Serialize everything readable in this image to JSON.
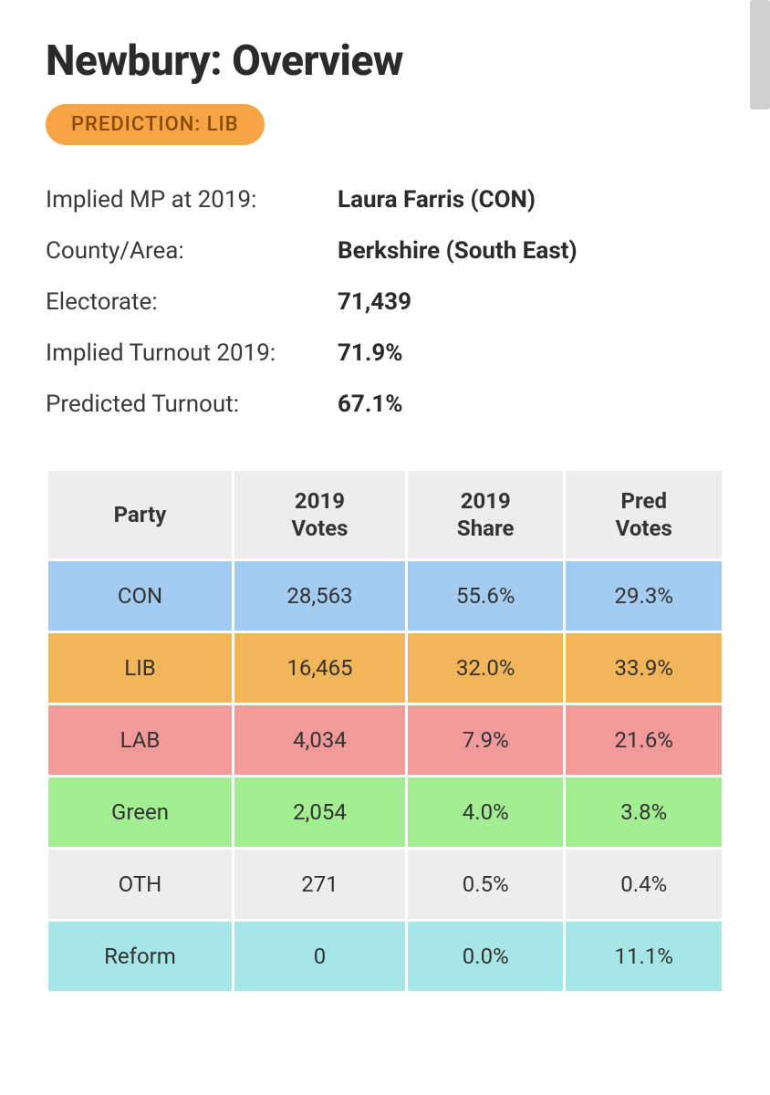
{
  "title": "Newbury: Overview",
  "prediction_badge": "PREDICTION: LIB",
  "info": {
    "mp_label": "Implied MP at 2019:",
    "mp_value": "Laura Farris  (CON)",
    "county_label": "County/Area:",
    "county_value": "Berkshire (South East)",
    "electorate_label": "Electorate:",
    "electorate_value": "71,439",
    "turnout2019_label": "Implied Turnout 2019:",
    "turnout2019_value": "71.9%",
    "predturnout_label": "Predicted Turnout:",
    "predturnout_value": "67.1%"
  },
  "table": {
    "headers": [
      "Party",
      "2019\nVotes",
      "2019\nShare",
      "Pred\nVotes"
    ],
    "rows": [
      {
        "party": "CON",
        "votes2019": "28,563",
        "share2019": "55.6%",
        "predvotes": "29.3%",
        "color": "#a4ccf0"
      },
      {
        "party": "LIB",
        "votes2019": "16,465",
        "share2019": "32.0%",
        "predvotes": "33.9%",
        "color": "#f3b559"
      },
      {
        "party": "LAB",
        "votes2019": "4,034",
        "share2019": "7.9%",
        "predvotes": "21.6%",
        "color": "#f29a9a"
      },
      {
        "party": "Green",
        "votes2019": "2,054",
        "share2019": "4.0%",
        "predvotes": "3.8%",
        "color": "#a3ed92"
      },
      {
        "party": "OTH",
        "votes2019": "271",
        "share2019": "0.5%",
        "predvotes": "0.4%",
        "color": "#ededed"
      },
      {
        "party": "Reform",
        "votes2019": "0",
        "share2019": "0.0%",
        "predvotes": "11.1%",
        "color": "#a7e6e6"
      }
    ]
  },
  "colors": {
    "badge_bg": "#f6a445",
    "badge_text": "#8a4a00",
    "header_bg": "#ededed",
    "text": "#2b2b2b"
  }
}
